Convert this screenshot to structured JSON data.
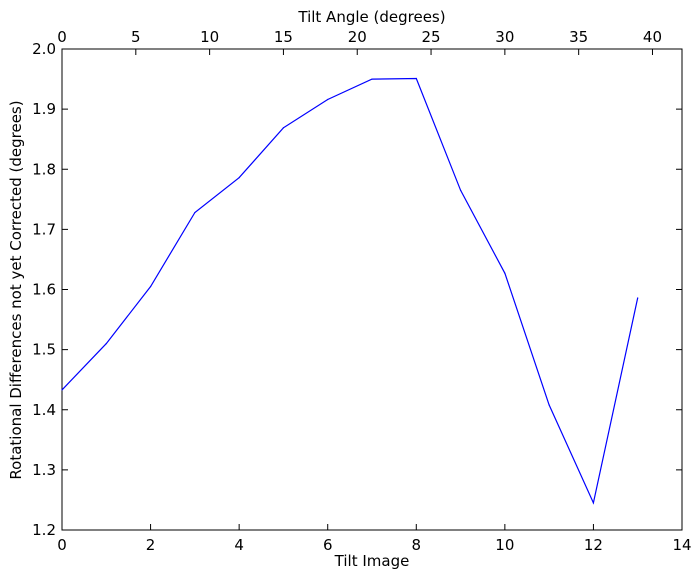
{
  "chart_data": {
    "type": "line",
    "xlabel": "Tilt Image",
    "ylabel": "Rotational Differences not yet Corrected (degrees)",
    "top_xlabel": "Tilt Angle (degrees)",
    "xlim": [
      0,
      14
    ],
    "ylim": [
      1.2,
      2.0
    ],
    "top_xlim": [
      0,
      42
    ],
    "x_ticks": [
      "0",
      "2",
      "4",
      "6",
      "8",
      "10",
      "12",
      "14"
    ],
    "y_ticks": [
      "1.2",
      "1.3",
      "1.4",
      "1.5",
      "1.6",
      "1.7",
      "1.8",
      "1.9",
      "2.0"
    ],
    "top_x_ticks": [
      "0",
      "5",
      "10",
      "15",
      "20",
      "25",
      "30",
      "35",
      "40"
    ],
    "grid": false,
    "series": [
      {
        "color": "#0000ff",
        "x": [
          0,
          1,
          2,
          3,
          4,
          5,
          6,
          7,
          8,
          9,
          10,
          11,
          12,
          13
        ],
        "values": [
          1.433,
          1.51,
          1.605,
          1.728,
          1.786,
          1.869,
          1.916,
          1.95,
          1.951,
          1.765,
          1.627,
          1.408,
          1.245,
          1.586
        ]
      }
    ]
  }
}
